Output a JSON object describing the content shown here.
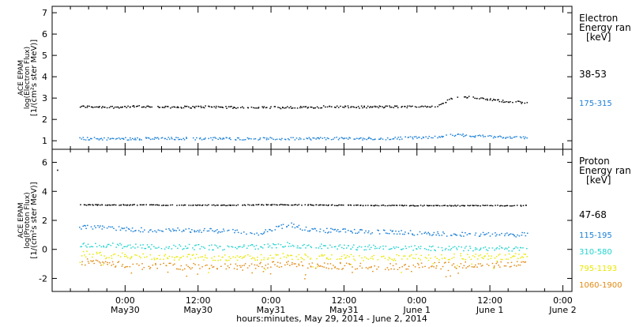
{
  "chart_data": {
    "type": "scatter",
    "x_axis": {
      "title": "hours:minutes, May 29, 2014 - June  2, 2014",
      "ticks": [
        {
          "t": 6,
          "line1": "0:00",
          "line2": "May30"
        },
        {
          "t": 18,
          "line1": "12:00",
          "line2": "May30"
        },
        {
          "t": 30,
          "line1": "0:00",
          "line2": "May31"
        },
        {
          "t": 42,
          "line1": "12:00",
          "line2": "May31"
        },
        {
          "t": 54,
          "line1": "0:00",
          "line2": "June 1"
        },
        {
          "t": 66,
          "line1": "12:00",
          "line2": "June 1"
        },
        {
          "t": 78,
          "line1": "0:00",
          "line2": "June 2"
        }
      ]
    },
    "panels": [
      {
        "id": "electron",
        "ylabel_lines": [
          "ACE EPAM",
          "log(Electron Flux)",
          "[1/(cm²s ster MeV)]"
        ],
        "ylim": [
          0.6,
          7.3
        ],
        "yticks": [
          1,
          2,
          3,
          4,
          5,
          6,
          7
        ],
        "legend_title": [
          "Electron",
          "Energy ran",
          "[keV]"
        ],
        "series": [
          {
            "name": "38-53",
            "color": "#000000",
            "points": [
              [
                0,
                2.62
              ],
              [
                4,
                2.6
              ],
              [
                8,
                2.63
              ],
              [
                12,
                2.61
              ],
              [
                16,
                2.6
              ],
              [
                20,
                2.62
              ],
              [
                24,
                2.58
              ],
              [
                28,
                2.6
              ],
              [
                32,
                2.57
              ],
              [
                36,
                2.6
              ],
              [
                40,
                2.62
              ],
              [
                44,
                2.6
              ],
              [
                48,
                2.61
              ],
              [
                52,
                2.62
              ],
              [
                56,
                2.63
              ],
              [
                58,
                2.7
              ],
              [
                59,
                2.9
              ],
              [
                60,
                3.1
              ],
              [
                62,
                3.08
              ],
              [
                64,
                3.0
              ],
              [
                66,
                2.95
              ],
              [
                68,
                2.88
              ],
              [
                70,
                2.84
              ],
              [
                72,
                2.8
              ]
            ]
          },
          {
            "name": "175-315",
            "color": "#1a7fd6",
            "points": [
              [
                0,
                1.12
              ],
              [
                8,
                1.12
              ],
              [
                16,
                1.13
              ],
              [
                24,
                1.12
              ],
              [
                32,
                1.12
              ],
              [
                40,
                1.13
              ],
              [
                48,
                1.12
              ],
              [
                56,
                1.18
              ],
              [
                60,
                1.3
              ],
              [
                64,
                1.24
              ],
              [
                68,
                1.2
              ],
              [
                72,
                1.15
              ]
            ]
          }
        ]
      },
      {
        "id": "proton",
        "ylabel_lines": [
          "ACE EPAM",
          "log(Proton Flux)",
          "[1/(cm²s ster MeV)]"
        ],
        "ylim": [
          -2.9,
          6.9
        ],
        "yticks": [
          -2,
          0,
          2,
          4,
          6
        ],
        "legend_title": [
          "Proton",
          "Energy ran",
          "[keV]"
        ],
        "series": [
          {
            "name": "47-68",
            "color": "#000000",
            "points": [
              [
                0,
                3.1
              ],
              [
                8,
                3.1
              ],
              [
                16,
                3.08
              ],
              [
                24,
                3.08
              ],
              [
                32,
                3.12
              ],
              [
                40,
                3.08
              ],
              [
                48,
                3.06
              ],
              [
                56,
                3.05
              ],
              [
                64,
                3.05
              ],
              [
                72,
                3.05
              ]
            ]
          },
          {
            "name": "115-195",
            "color": "#1a7fd6",
            "points": [
              [
                0,
                1.55
              ],
              [
                8,
                1.4
              ],
              [
                16,
                1.35
              ],
              [
                24,
                1.3
              ],
              [
                28,
                1.15
              ],
              [
                31,
                1.55
              ],
              [
                33,
                1.75
              ],
              [
                35,
                1.5
              ],
              [
                38,
                1.3
              ],
              [
                42,
                1.3
              ],
              [
                46,
                1.25
              ],
              [
                52,
                1.2
              ],
              [
                56,
                1.1
              ],
              [
                64,
                1.05
              ],
              [
                72,
                1.05
              ]
            ]
          },
          {
            "name": "310-580",
            "color": "#22d3cf",
            "points": [
              [
                0,
                0.35
              ],
              [
                8,
                0.25
              ],
              [
                16,
                0.2
              ],
              [
                24,
                0.15
              ],
              [
                32,
                0.35
              ],
              [
                40,
                0.2
              ],
              [
                48,
                0.15
              ],
              [
                56,
                0.12
              ],
              [
                64,
                0.1
              ],
              [
                72,
                0.1
              ]
            ]
          },
          {
            "name": "795-1193",
            "color": "#e8e800",
            "points": [
              [
                0,
                -0.3
              ],
              [
                8,
                -0.45
              ],
              [
                16,
                -0.5
              ],
              [
                24,
                -0.55
              ],
              [
                32,
                -0.45
              ],
              [
                40,
                -0.5
              ],
              [
                48,
                -0.55
              ],
              [
                56,
                -0.5
              ],
              [
                64,
                -0.45
              ],
              [
                72,
                -0.45
              ]
            ]
          },
          {
            "name": "1060-1900",
            "color": "#e08a12",
            "points": [
              [
                0,
                -0.85
              ],
              [
                8,
                -1.1
              ],
              [
                16,
                -1.15
              ],
              [
                24,
                -1.2
              ],
              [
                32,
                -1.0
              ],
              [
                40,
                -1.1
              ],
              [
                48,
                -1.15
              ],
              [
                56,
                -1.1
              ],
              [
                64,
                -1.0
              ],
              [
                72,
                -1.0
              ]
            ]
          }
        ]
      }
    ]
  }
}
